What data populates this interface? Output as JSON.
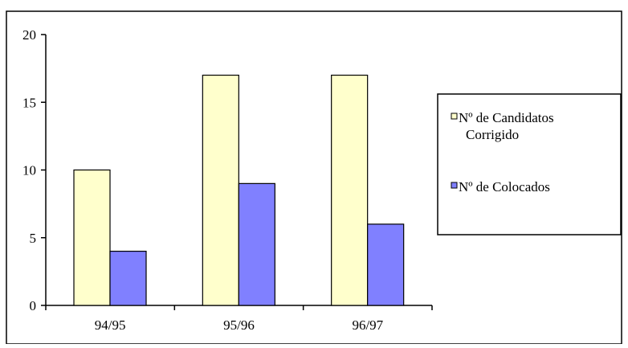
{
  "chart_data": {
    "type": "bar",
    "categories": [
      "94/95",
      "95/96",
      "96/97"
    ],
    "series": [
      {
        "name": "Nº de Candidatos Corrigido",
        "values": [
          10,
          17,
          17
        ],
        "color": "#FFFFCC"
      },
      {
        "name": "Nº de Colocados",
        "values": [
          4,
          9,
          6
        ],
        "color": "#8080FF"
      }
    ],
    "legend_lines": [
      [
        "Nº de Candidatos",
        "Corrigido"
      ],
      [
        "Nº de Colocados"
      ]
    ],
    "ylim": [
      0,
      20
    ],
    "yticks": [
      0,
      5,
      10,
      15,
      20
    ],
    "grid": false,
    "legend_position": "right",
    "title": "",
    "xlabel": "",
    "ylabel": ""
  }
}
